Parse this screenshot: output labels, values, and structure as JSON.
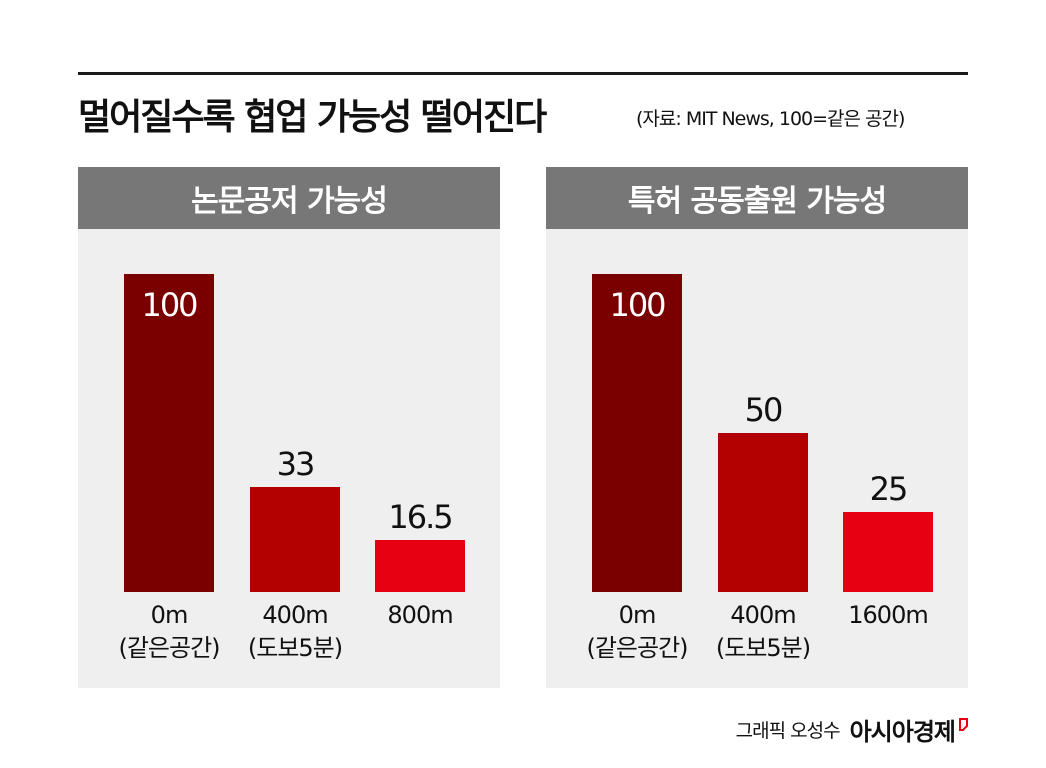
{
  "title": "멀어질수록 협업 가능성 떨어진다",
  "source_note": "(자료: MIT News, 100=같은 공간)",
  "credit": {
    "text": "그래픽 오성수",
    "brand": "아시아경제"
  },
  "colors": {
    "bar_dark": "#7a0000",
    "bar_mid": "#b30000",
    "bar_light": "#e60012",
    "panel_head": "#777777",
    "panel_bg": "#efefef"
  },
  "chart_data": [
    {
      "type": "bar",
      "title": "논문공저 가능성",
      "categories": [
        [
          "0m",
          "(같은공간)"
        ],
        [
          "400m",
          "(도보5분)"
        ],
        [
          "800m"
        ]
      ],
      "values": [
        100,
        33,
        16.5
      ],
      "value_labels": [
        "100",
        "33",
        "16.5"
      ],
      "ylim": [
        0,
        100
      ],
      "grid": false,
      "legend": "none"
    },
    {
      "type": "bar",
      "title": "특허 공동출원 가능성",
      "categories": [
        [
          "0m",
          "(같은공간)"
        ],
        [
          "400m",
          "(도보5분)"
        ],
        [
          "1600m"
        ]
      ],
      "values": [
        100,
        50,
        25
      ],
      "value_labels": [
        "100",
        "50",
        "25"
      ],
      "ylim": [
        0,
        100
      ],
      "grid": false,
      "legend": "none"
    }
  ]
}
